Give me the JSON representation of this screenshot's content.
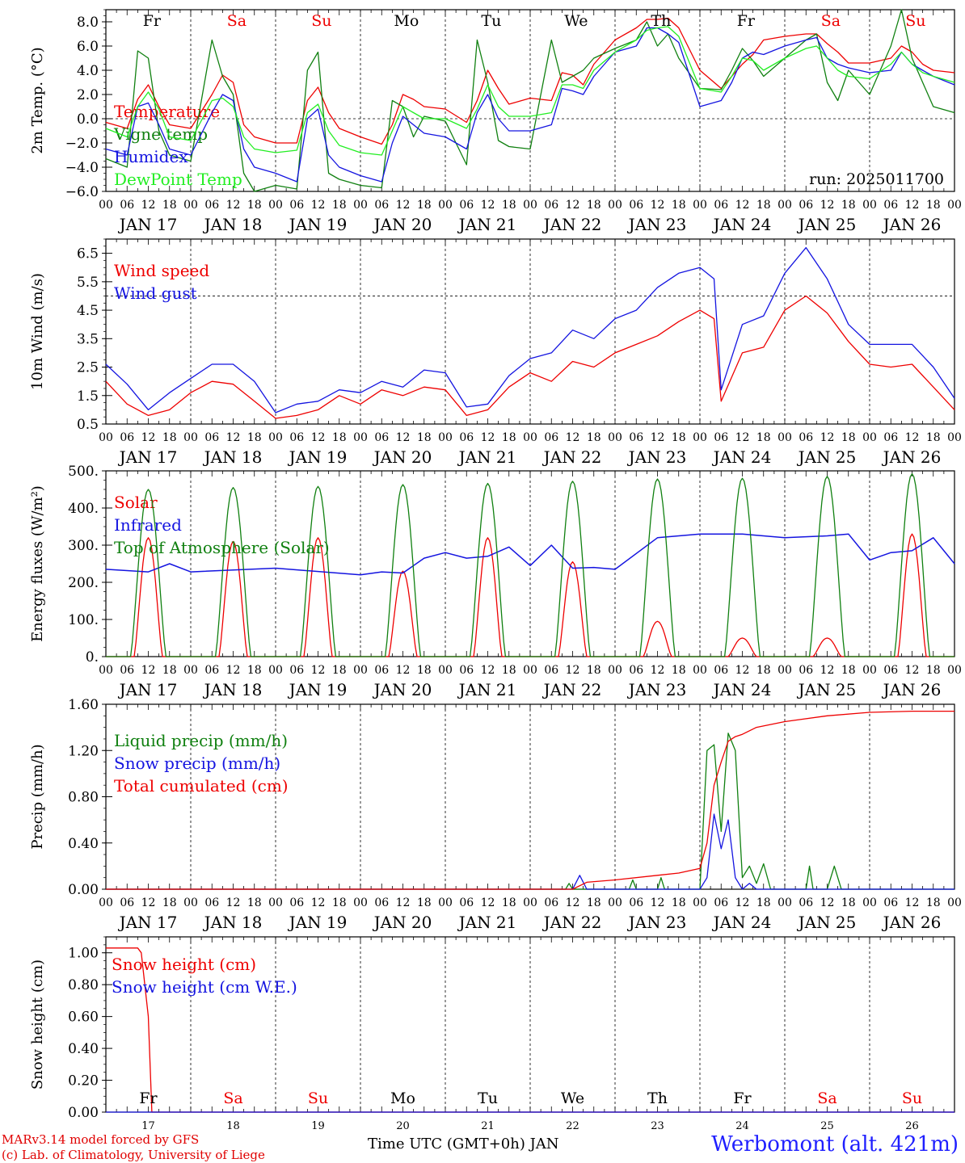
{
  "station": "Werbomont (alt. 421m)",
  "credits": {
    "model": "MARv3.14 model forced by GFS",
    "lab": "(c) Lab. of Climatology, University of Liege"
  },
  "xlabel": "Time UTC (GMT+0h) JAN",
  "run": "run: 2025011700",
  "colors": {
    "red": "#ee0000",
    "green": "#108010",
    "blue": "#1414e0",
    "lightgreen": "#22ee22"
  },
  "days": {
    "weekday_labels": [
      "Fr",
      "Sa",
      "Su",
      "Mo",
      "Tu",
      "We",
      "Th",
      "Fr",
      "Sa",
      "Su"
    ],
    "weekday_colors": [
      "#000000",
      "#ee0000",
      "#ee0000",
      "#000000",
      "#000000",
      "#000000",
      "#000000",
      "#000000",
      "#ee0000",
      "#ee0000"
    ],
    "date_labels": [
      "JAN 17",
      "JAN 18",
      "JAN 19",
      "JAN 20",
      "JAN 21",
      "JAN 22",
      "JAN 23",
      "JAN 24",
      "JAN 25",
      "JAN 26"
    ],
    "day_numbers": [
      "17",
      "18",
      "19",
      "20",
      "21",
      "22",
      "23",
      "24",
      "25",
      "26"
    ],
    "hour_labels": [
      "00",
      "06",
      "12",
      "18"
    ],
    "end_hour_label": "00"
  },
  "chart_data": [
    {
      "type": "line",
      "ylabel": "2m Temp. (°C)",
      "ylim": [
        -6,
        9
      ],
      "yticks": [
        -6,
        -4,
        -2,
        0,
        2,
        4,
        6,
        8
      ],
      "ytick_labels": [
        "−6.0",
        "−4.0",
        "−2.0",
        "0.0",
        "2.0",
        "4.0",
        "6.0",
        "8.0"
      ],
      "reference_line": 0,
      "x_hours": [
        0,
        6,
        9,
        12,
        15,
        18,
        24,
        30,
        33,
        36,
        39,
        42,
        48,
        54,
        57,
        60,
        63,
        66,
        72,
        78,
        81,
        84,
        87,
        90,
        96,
        102,
        105,
        108,
        111,
        114,
        120,
        126,
        129,
        132,
        135,
        138,
        144,
        150,
        153,
        156,
        159,
        162,
        168,
        174,
        177,
        180,
        183,
        186,
        192,
        198,
        201,
        204,
        207,
        210,
        216,
        222,
        225,
        228,
        231,
        234,
        240
      ],
      "series": [
        {
          "name": "Temperature",
          "color": "#ee0000",
          "values": [
            -0.3,
            -0.8,
            1.6,
            2.8,
            1.0,
            -0.5,
            -0.8,
            2.0,
            3.6,
            3.0,
            -0.5,
            -1.5,
            -2.0,
            -2.0,
            1.5,
            2.6,
            0.5,
            -0.8,
            -1.5,
            -2.1,
            -0.5,
            2.0,
            1.6,
            1.0,
            0.8,
            -0.3,
            1.5,
            4.0,
            2.5,
            1.2,
            1.7,
            1.5,
            3.8,
            3.6,
            2.8,
            4.5,
            6.5,
            7.5,
            8.2,
            8.2,
            8.3,
            7.5,
            4.0,
            2.5,
            3.5,
            4.5,
            5.3,
            6.5,
            6.8,
            7.0,
            7.0,
            6.2,
            5.5,
            4.6,
            4.6,
            5.0,
            6.0,
            5.5,
            4.5,
            4.0,
            3.8
          ]
        },
        {
          "name": "Vigne temp",
          "color": "#108010",
          "values": [
            -3.3,
            -4.0,
            5.6,
            5.0,
            -1.0,
            -3.0,
            -3.5,
            6.5,
            3.5,
            2.0,
            -4.5,
            -6.0,
            -5.5,
            -5.8,
            4.0,
            5.5,
            -4.5,
            -5.0,
            -5.5,
            -5.7,
            1.5,
            1.0,
            -1.5,
            0.2,
            -0.2,
            -3.8,
            6.5,
            3.0,
            -1.8,
            -2.3,
            -2.5,
            6.5,
            3.0,
            3.5,
            4.0,
            5.0,
            5.8,
            6.5,
            8.0,
            6.0,
            7.0,
            5.0,
            2.5,
            2.4,
            4.0,
            5.8,
            4.8,
            3.5,
            5.0,
            6.5,
            7.0,
            3.0,
            1.5,
            4.0,
            2.0,
            6.0,
            9.0,
            5.0,
            3.0,
            1.0,
            0.5
          ]
        },
        {
          "name": "Humidex",
          "color": "#1414e0",
          "values": [
            -2.5,
            -3.0,
            1.0,
            1.3,
            -0.5,
            -2.5,
            -3.0,
            0.5,
            2.0,
            1.5,
            -2.5,
            -4.0,
            -4.5,
            -5.2,
            0.0,
            0.8,
            -3.0,
            -4.0,
            -4.7,
            -5.2,
            -2.0,
            0.2,
            -0.5,
            -1.2,
            -1.5,
            -2.5,
            0.5,
            2.0,
            0.0,
            -1.0,
            -1.0,
            -0.5,
            2.5,
            2.3,
            2.0,
            3.5,
            5.5,
            6.0,
            7.5,
            7.5,
            7.0,
            6.3,
            1.0,
            1.5,
            3.0,
            5.0,
            5.5,
            5.3,
            6.0,
            6.5,
            6.7,
            5.0,
            4.5,
            4.2,
            3.8,
            4.0,
            5.5,
            4.5,
            4.0,
            3.5,
            2.8
          ]
        },
        {
          "name": "DewPoint Temp",
          "color": "#22ee22",
          "values": [
            -0.8,
            -1.5,
            1.0,
            2.2,
            0.8,
            -1.5,
            -1.8,
            1.5,
            1.7,
            1.0,
            -1.5,
            -2.5,
            -2.8,
            -2.6,
            0.5,
            1.2,
            -1.0,
            -2.2,
            -2.8,
            -3.0,
            -1.0,
            1.0,
            0.5,
            0.0,
            0.0,
            -0.8,
            0.8,
            2.8,
            1.0,
            0.2,
            0.2,
            0.5,
            2.8,
            2.8,
            2.5,
            4.0,
            5.5,
            6.5,
            7.3,
            7.5,
            7.6,
            6.8,
            2.5,
            2.2,
            3.5,
            5.0,
            4.8,
            4.0,
            5.0,
            5.8,
            6.0,
            5.0,
            4.0,
            3.5,
            3.3,
            4.5,
            5.5,
            4.5,
            3.8,
            3.5,
            3.0
          ]
        }
      ]
    },
    {
      "type": "line",
      "ylabel": "10m Wind (m/s)",
      "ylim": [
        0.5,
        7
      ],
      "yticks": [
        0.5,
        1.5,
        2.5,
        3.5,
        4.5,
        5.5,
        6.5
      ],
      "ytick_labels": [
        "0.5",
        "1.5",
        "2.5",
        "3.5",
        "4.5",
        "5.5",
        "6.5"
      ],
      "reference_line": 5,
      "x_hours": [
        0,
        6,
        12,
        18,
        24,
        30,
        36,
        42,
        48,
        54,
        60,
        66,
        72,
        78,
        84,
        90,
        96,
        102,
        108,
        114,
        120,
        126,
        132,
        138,
        144,
        150,
        156,
        162,
        168,
        172,
        174,
        180,
        186,
        192,
        198,
        204,
        210,
        216,
        222,
        228,
        234,
        240
      ],
      "series": [
        {
          "name": "Wind speed",
          "color": "#ee0000",
          "values": [
            2.0,
            1.2,
            0.8,
            1.0,
            1.6,
            2.0,
            1.9,
            1.3,
            0.7,
            0.8,
            1.0,
            1.5,
            1.2,
            1.7,
            1.5,
            1.8,
            1.7,
            0.8,
            1.0,
            1.8,
            2.3,
            2.0,
            2.7,
            2.5,
            3.0,
            3.3,
            3.6,
            4.1,
            4.5,
            4.2,
            1.3,
            3.0,
            3.2,
            4.5,
            5.0,
            4.4,
            3.4,
            2.6,
            2.5,
            2.6,
            1.8,
            1.0
          ]
        },
        {
          "name": "Wind gust",
          "color": "#1414e0",
          "values": [
            2.6,
            1.9,
            1.0,
            1.6,
            2.1,
            2.6,
            2.6,
            2.0,
            0.9,
            1.2,
            1.3,
            1.7,
            1.6,
            2.0,
            1.8,
            2.4,
            2.3,
            1.1,
            1.2,
            2.2,
            2.8,
            3.0,
            3.8,
            3.5,
            4.2,
            4.5,
            5.3,
            5.8,
            6.0,
            5.6,
            1.7,
            4.0,
            4.3,
            5.8,
            6.7,
            5.6,
            4.0,
            3.3,
            3.3,
            3.3,
            2.5,
            1.4
          ]
        }
      ]
    },
    {
      "type": "line",
      "ylabel": "Energy fluxes (W/m²)",
      "ylim": [
        0,
        500
      ],
      "yticks": [
        0,
        100,
        200,
        300,
        400,
        500
      ],
      "ytick_labels": [
        "0.",
        "100.",
        "200.",
        "300.",
        "400.",
        "500."
      ],
      "series": [
        {
          "name": "Solar",
          "color": "#ee0000",
          "day_peaks": [
            320,
            310,
            320,
            230,
            320,
            255,
            95,
            50,
            50,
            330
          ]
        },
        {
          "name": "Infrared",
          "color": "#1414e0",
          "x_hours": [
            0,
            12,
            18,
            24,
            48,
            72,
            78,
            84,
            90,
            96,
            102,
            108,
            114,
            120,
            126,
            132,
            138,
            144,
            156,
            168,
            180,
            192,
            204,
            210,
            216,
            222,
            228,
            234,
            240
          ],
          "values": [
            235,
            228,
            250,
            228,
            238,
            220,
            228,
            225,
            265,
            280,
            265,
            270,
            295,
            245,
            300,
            238,
            240,
            235,
            320,
            330,
            330,
            320,
            325,
            330,
            260,
            280,
            285,
            320,
            250
          ]
        },
        {
          "name": "Top of Atmosphere (Solar)",
          "color": "#108010",
          "day_peaks": [
            450,
            455,
            458,
            463,
            466,
            472,
            478,
            480,
            485,
            492
          ]
        }
      ]
    },
    {
      "type": "line",
      "ylabel": "Precip (mm/h)",
      "ylim": [
        0,
        1.6
      ],
      "yticks": [
        0,
        0.4,
        0.8,
        1.2,
        1.6
      ],
      "ytick_labels": [
        "0.00",
        "0.40",
        "0.80",
        "1.20",
        "1.60"
      ],
      "series": [
        {
          "name": "Liquid precip (mm/h)",
          "color": "#108010",
          "x_hours": [
            0,
            130,
            131,
            132,
            148,
            149,
            150,
            156,
            157,
            158,
            168,
            170,
            172,
            174,
            176,
            178,
            180,
            182,
            184,
            186,
            188,
            190,
            192,
            198,
            199,
            200,
            204,
            206,
            208,
            210,
            240
          ],
          "values": [
            0,
            0,
            0.05,
            0,
            0,
            0.08,
            0,
            0,
            0.1,
            0,
            0,
            1.2,
            1.25,
            0.5,
            1.35,
            1.2,
            0.1,
            0.2,
            0.05,
            0.22,
            0,
            0,
            0,
            0,
            0.2,
            0,
            0,
            0.2,
            0,
            0,
            0
          ]
        },
        {
          "name": "Snow precip (mm/h)",
          "color": "#1414e0",
          "x_hours": [
            0,
            132,
            134,
            136,
            168,
            170,
            172,
            174,
            176,
            178,
            180,
            182,
            184,
            240
          ],
          "values": [
            0,
            0,
            0.12,
            0,
            0,
            0.1,
            0.65,
            0.35,
            0.6,
            0.1,
            0,
            0.05,
            0,
            0
          ]
        },
        {
          "name": "Total cumulated (cm)",
          "color": "#ee0000",
          "x_hours": [
            0,
            132,
            136,
            144,
            156,
            162,
            168,
            170,
            172,
            174,
            176,
            178,
            180,
            184,
            192,
            204,
            216,
            228,
            240
          ],
          "values": [
            0,
            0,
            0.06,
            0.08,
            0.12,
            0.14,
            0.18,
            0.4,
            0.9,
            1.1,
            1.28,
            1.32,
            1.34,
            1.4,
            1.45,
            1.5,
            1.53,
            1.54,
            1.54
          ]
        }
      ]
    },
    {
      "type": "line",
      "ylabel": "Snow height (cm)",
      "ylim": [
        0,
        1.1
      ],
      "yticks": [
        0,
        0.2,
        0.4,
        0.6,
        0.8,
        1.0
      ],
      "ytick_labels": [
        "0.00",
        "0.20",
        "0.40",
        "0.60",
        "0.80",
        "1.00"
      ],
      "series": [
        {
          "name": "Snow height (cm)",
          "color": "#ee0000",
          "x_hours": [
            0,
            9,
            10,
            12,
            13,
            240
          ],
          "values": [
            1.03,
            1.03,
            1.0,
            0.6,
            0,
            0
          ]
        },
        {
          "name": "Snow height (cm W.E.)",
          "color": "#1414e0",
          "x_hours": [
            0,
            240
          ],
          "values": [
            0,
            0
          ]
        }
      ]
    }
  ]
}
